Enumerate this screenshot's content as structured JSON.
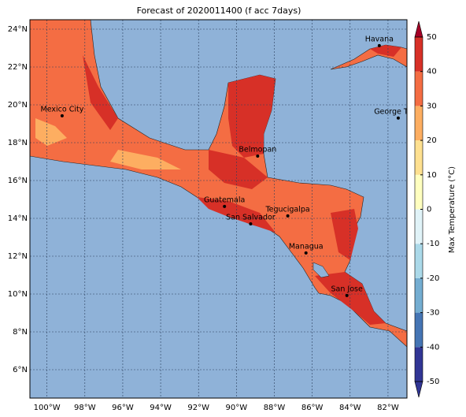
{
  "map": {
    "title": "Forecast of 2020011400 (f acc 7days)",
    "lonlim": [
      -100.9,
      -81
    ],
    "latlim": [
      4.5,
      24.5
    ],
    "lon_ticks": [
      {
        "value": -100,
        "label": "100°W"
      },
      {
        "value": -98,
        "label": "98°W"
      },
      {
        "value": -96,
        "label": "96°W"
      },
      {
        "value": -94,
        "label": "94°W"
      },
      {
        "value": -92,
        "label": "92°W"
      },
      {
        "value": -90,
        "label": "90°W"
      },
      {
        "value": -88,
        "label": "88°W"
      },
      {
        "value": -86,
        "label": "86°W"
      },
      {
        "value": -84,
        "label": "84°W"
      },
      {
        "value": -82,
        "label": "82°W"
      }
    ],
    "lat_ticks": [
      {
        "value": 6,
        "label": "6°N"
      },
      {
        "value": 8,
        "label": "8°N"
      },
      {
        "value": 10,
        "label": "10°N"
      },
      {
        "value": 12,
        "label": "12°N"
      },
      {
        "value": 14,
        "label": "14°N"
      },
      {
        "value": 16,
        "label": "16°N"
      },
      {
        "value": 18,
        "label": "18°N"
      },
      {
        "value": 20,
        "label": "20°N"
      },
      {
        "value": 22,
        "label": "22°N"
      },
      {
        "value": 24,
        "label": "24°N"
      }
    ],
    "cities": [
      {
        "name": "Havana",
        "lon": -82.46,
        "lat": 23.13
      },
      {
        "name": "Mexico City",
        "lon": -99.2,
        "lat": 19.42
      },
      {
        "name": "George Town",
        "lon": -81.46,
        "lat": 19.3
      },
      {
        "name": "Belmopan",
        "lon": -88.88,
        "lat": 17.29
      },
      {
        "name": "Guatemala",
        "lon": -90.63,
        "lat": 14.63
      },
      {
        "name": "San Salvador",
        "lon": -89.25,
        "lat": 13.71
      },
      {
        "name": "Tegucigalpa",
        "lon": -87.29,
        "lat": 14.13
      },
      {
        "name": "Managua",
        "lon": -86.33,
        "lat": 12.17
      },
      {
        "name": "San Jose",
        "lon": -84.17,
        "lat": 9.92
      }
    ],
    "colorbar": {
      "label": "Max Temperature (°C)",
      "lim": [
        -50,
        50
      ],
      "ticks": [
        -50,
        -40,
        -30,
        -20,
        -10,
        0,
        10,
        20,
        30,
        40,
        50
      ],
      "colors": [
        "#313695",
        "#4575b4",
        "#74add1",
        "#abd9e9",
        "#e0f3f8",
        "#ffffbf",
        "#fee090",
        "#fdae61",
        "#f46d43",
        "#d73027",
        "#a50026"
      ]
    }
  }
}
